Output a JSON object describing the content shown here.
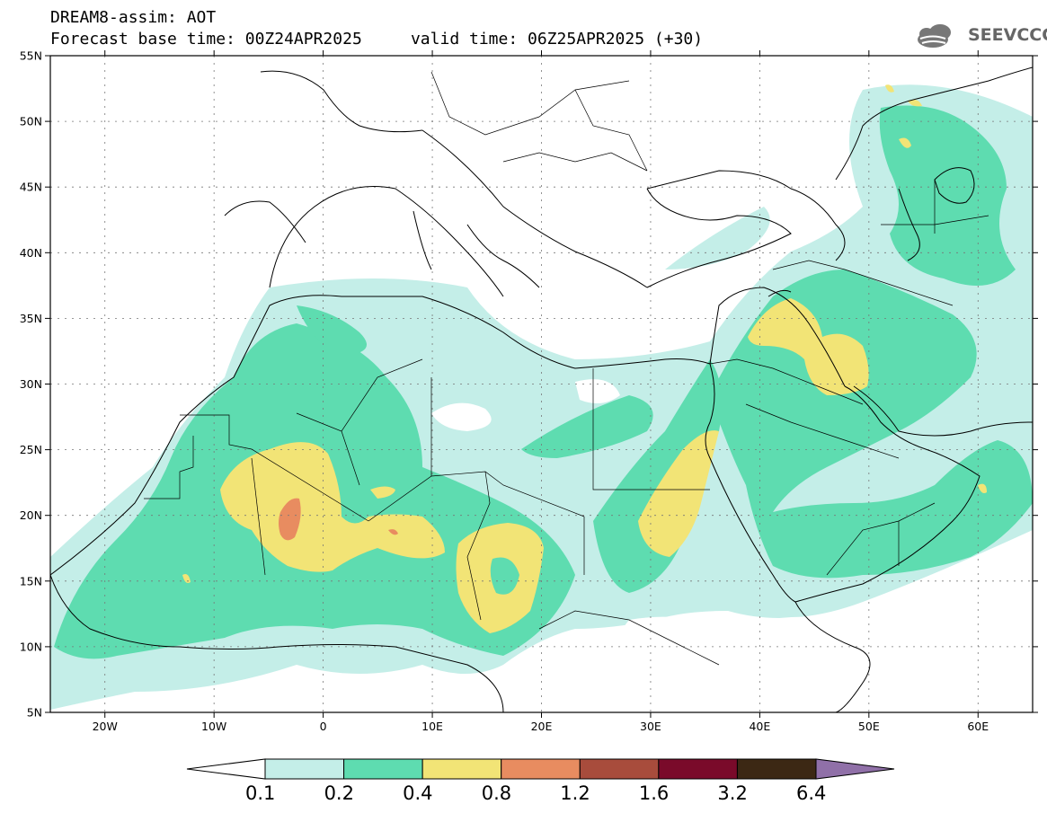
{
  "title": {
    "line1": "DREAM8-assim: AOT",
    "base_time": "Forecast base time: 00Z24APR2025",
    "valid_time": "valid time: 06Z25APR2025 (+30)"
  },
  "logo": {
    "text": "SEEVCCC",
    "icon": "cloud-logo-icon",
    "color": "#666666"
  },
  "map": {
    "lat_labels": [
      "55N",
      "50N",
      "45N",
      "40N",
      "35N",
      "30N",
      "25N",
      "20N",
      "15N",
      "10N",
      "5N"
    ],
    "lon_labels": [
      "20W",
      "10W",
      "0",
      "10E",
      "20E",
      "30E",
      "40E",
      "50E",
      "60E"
    ],
    "lon_range": [
      -25,
      65
    ],
    "lat_range": [
      5,
      55
    ]
  },
  "colorbar": {
    "labels": [
      "0.1",
      "0.2",
      "0.4",
      "0.8",
      "1.2",
      "1.6",
      "3.2",
      "6.4"
    ],
    "colors": [
      "#ffffff",
      "#c4eee8",
      "#5edcb0",
      "#f2e476",
      "#e88c60",
      "#a84c3c",
      "#7a0a2a",
      "#3c2814",
      "#9070a8"
    ]
  },
  "legend_colors": {
    "c1": "#c4eee8",
    "c2": "#5edcb0",
    "c3": "#f2e476",
    "c4": "#e88c60"
  }
}
